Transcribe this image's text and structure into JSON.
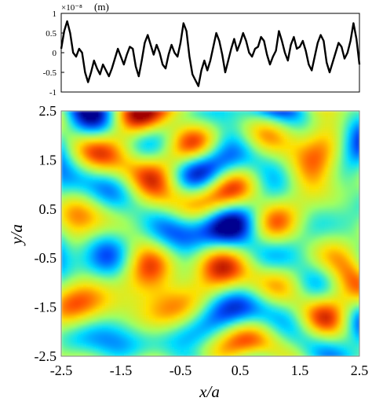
{
  "chart_data": [
    {
      "type": "line",
      "title": "",
      "xlabel": "",
      "ylabel": "",
      "units_label": "(m)",
      "scale_label": "×10⁻⁸",
      "ylim": [
        -1,
        1
      ],
      "yticks": [
        "1",
        "0.5",
        "0",
        "-0.5",
        "-1"
      ],
      "series": [
        {
          "x": [
            -2.5,
            -2.45,
            -2.4,
            -2.35,
            -2.3,
            -2.25,
            -2.2,
            -2.15,
            -2.1,
            -2.05,
            -2.0,
            -1.95,
            -1.9,
            -1.85,
            -1.8,
            -1.75,
            -1.7,
            -1.65,
            -1.6,
            -1.55,
            -1.5,
            -1.45,
            -1.4,
            -1.35,
            -1.3,
            -1.25,
            -1.2,
            -1.15,
            -1.1,
            -1.05,
            -1.0,
            -0.95,
            -0.9,
            -0.85,
            -0.8,
            -0.75,
            -0.7,
            -0.65,
            -0.6,
            -0.55,
            -0.5,
            -0.45,
            -0.4,
            -0.35,
            -0.3,
            -0.25,
            -0.2,
            -0.15,
            -0.1,
            -0.05,
            0.0,
            0.05,
            0.1,
            0.15,
            0.2,
            0.25,
            0.3,
            0.35,
            0.4,
            0.45,
            0.5,
            0.55,
            0.6,
            0.65,
            0.7,
            0.75,
            0.8,
            0.85,
            0.9,
            0.95,
            1.0,
            1.05,
            1.1,
            1.15,
            1.2,
            1.25,
            1.3,
            1.35,
            1.4,
            1.45,
            1.5,
            1.55,
            1.6,
            1.65,
            1.7,
            1.75,
            1.8,
            1.85,
            1.9,
            1.95,
            2.0,
            2.05,
            2.1,
            2.15,
            2.2,
            2.25,
            2.3,
            2.35,
            2.4,
            2.45,
            2.5
          ],
          "y": [
            0.1,
            0.55,
            0.8,
            0.5,
            0.0,
            -0.1,
            0.1,
            0.0,
            -0.5,
            -0.75,
            -0.5,
            -0.2,
            -0.4,
            -0.55,
            -0.3,
            -0.45,
            -0.6,
            -0.4,
            -0.15,
            0.1,
            -0.1,
            -0.3,
            -0.05,
            0.15,
            0.1,
            -0.35,
            -0.6,
            -0.2,
            0.25,
            0.45,
            0.2,
            -0.05,
            0.2,
            0.0,
            -0.3,
            -0.4,
            -0.05,
            0.2,
            0.0,
            -0.1,
            0.25,
            0.75,
            0.55,
            -0.1,
            -0.55,
            -0.7,
            -0.85,
            -0.45,
            -0.2,
            -0.45,
            -0.2,
            0.15,
            0.5,
            0.3,
            -0.05,
            -0.5,
            -0.2,
            0.1,
            0.35,
            0.05,
            0.25,
            0.5,
            0.3,
            0.0,
            -0.1,
            0.1,
            0.15,
            0.4,
            0.3,
            -0.05,
            -0.3,
            -0.1,
            0.05,
            0.55,
            0.3,
            0.0,
            -0.2,
            0.2,
            0.4,
            0.1,
            0.15,
            0.3,
            0.05,
            -0.3,
            -0.45,
            -0.1,
            0.25,
            0.45,
            0.3,
            -0.25,
            -0.5,
            -0.25,
            0.0,
            0.25,
            0.15,
            -0.15,
            0.0,
            0.3,
            0.75,
            0.35,
            -0.3
          ]
        }
      ]
    },
    {
      "type": "heatmap",
      "title": "",
      "xlabel": "x/a",
      "ylabel": "y/a",
      "xlim": [
        -2.5,
        2.5
      ],
      "ylim": [
        -2.5,
        2.5
      ],
      "xticks": [
        "-2.5",
        "-1.5",
        "-0.5",
        "0.5",
        "1.5",
        "2.5"
      ],
      "yticks": [
        "2.5",
        "1.5",
        "0.5",
        "-0.5",
        "-1.5",
        "-2.5"
      ],
      "colormap": [
        "#00008f",
        "#0050ff",
        "#00dfff",
        "#9fff60",
        "#ffe000",
        "#ff5000",
        "#a00000"
      ],
      "value_range": [
        -1,
        1
      ],
      "description_values": "random rough-surface height field, mostly cyan/yellow with scattered red and blue blobs"
    }
  ]
}
